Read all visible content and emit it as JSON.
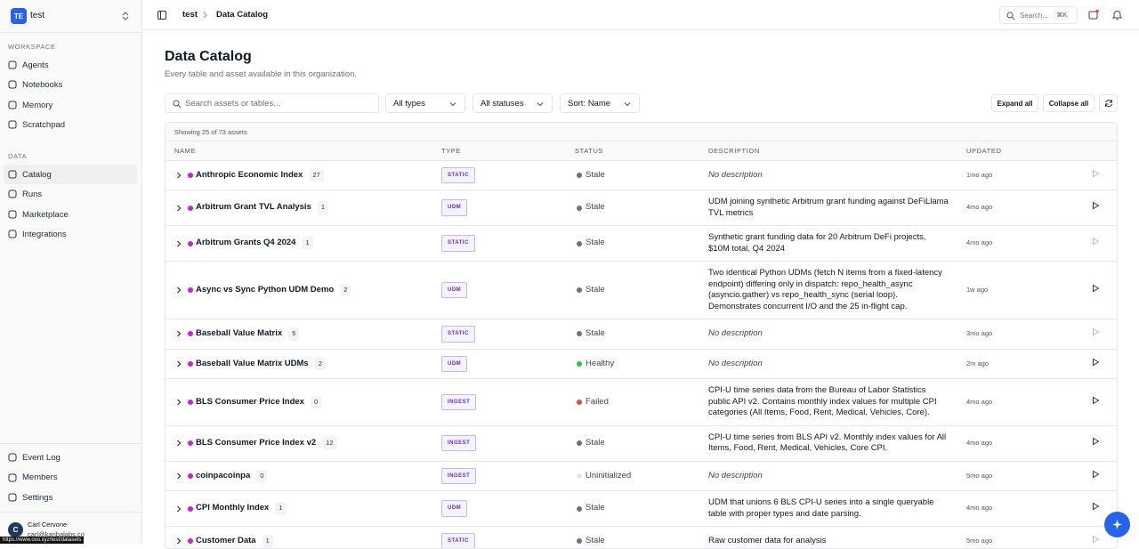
{
  "sidebar": {
    "workspace": {
      "initials": "TE",
      "name": "test"
    },
    "sections": [
      {
        "title": "WORKSPACE",
        "items": [
          "Agents",
          "Notebooks",
          "Memory",
          "Scratchpad"
        ]
      },
      {
        "title": "DATA",
        "items": [
          "Catalog",
          "Runs",
          "Marketplace",
          "Integrations"
        ]
      }
    ],
    "footer_items": [
      "Event Log",
      "Members",
      "Settings"
    ],
    "user": {
      "initial": "C",
      "name": "Carl Cervone",
      "email": "carl@karibalabs.co"
    },
    "status_url": "https://www.oso.xyz/test/datasets"
  },
  "topbar": {
    "breadcrumb": [
      "test",
      "Data Catalog"
    ],
    "search": "Search...",
    "shortcut": "⌘K"
  },
  "header": {
    "title": "Data Catalog",
    "subtitle": "Every table and asset available in this organization."
  },
  "toolbar": {
    "search_placeholder": "Search assets or tables...",
    "filters": [
      "All types",
      "All statuses",
      "Sort: Name"
    ],
    "buttons": [
      "Expand all",
      "Collapse all"
    ]
  },
  "table": {
    "summary": "Showing 25 of 73 assets",
    "columns": [
      "NAME",
      "TYPE",
      "STATUS",
      "DESCRIPTION",
      "UPDATED"
    ],
    "rows": [
      {
        "name": "Anthropic Economic Index",
        "count": "27",
        "type": "STATIC",
        "status": "Stale",
        "status_color": "#6b7280",
        "description": "No description",
        "described": false,
        "updated": "1mo ago",
        "runnable": false
      },
      {
        "name": "Arbitrum Grant TVL Analysis",
        "count": "1",
        "type": "UDM",
        "status": "Stale",
        "status_color": "#6b7280",
        "description": "UDM joining synthetic Arbitrum grant funding against DeFiLlama TVL metrics",
        "described": true,
        "updated": "4mo ago",
        "runnable": true
      },
      {
        "name": "Arbitrum Grants Q4 2024",
        "count": "1",
        "type": "STATIC",
        "status": "Stale",
        "status_color": "#6b7280",
        "description": "Synthetic grant funding data for 20 Arbitrum DeFi projects, $10M total, Q4 2024",
        "described": true,
        "updated": "4mo ago",
        "runnable": false
      },
      {
        "name": "Async vs Sync Python UDM Demo",
        "count": "2",
        "type": "UDM",
        "status": "Stale",
        "status_color": "#6b7280",
        "description": "Two identical Python UDMs (fetch N items from a fixed-latency endpoint) differing only in dispatch: repo_health_async (asyncio.gather) vs repo_health_sync (serial loop). Demonstrates concurrent I/O and the 25 in-flight cap.",
        "described": true,
        "updated": "1w ago",
        "runnable": true
      },
      {
        "name": "Baseball Value Matrix",
        "count": "5",
        "type": "STATIC",
        "status": "Stale",
        "status_color": "#6b7280",
        "description": "No description",
        "described": false,
        "updated": "3mo ago",
        "runnable": false
      },
      {
        "name": "Baseball Value Matrix UDMs",
        "count": "2",
        "type": "UDM",
        "status": "Healthy",
        "status_color": "#22c55e",
        "description": "No description",
        "described": false,
        "updated": "2m ago",
        "runnable": true
      },
      {
        "name": "BLS Consumer Price Index",
        "count": "0",
        "type": "INGEST",
        "status": "Failed",
        "status_color": "#ef4444",
        "description": "CPI-U time series data from the Bureau of Labor Statistics public API v2. Contains monthly index values for multiple CPI categories (All Items, Food, Rent, Medical, Vehicles, Core).",
        "described": true,
        "updated": "4mo ago",
        "runnable": true
      },
      {
        "name": "BLS Consumer Price Index v2",
        "count": "12",
        "type": "INGEST",
        "status": "Stale",
        "status_color": "#6b7280",
        "description": "CPI-U time series from BLS API v2. Monthly index values for All Items, Food, Rent, Medical, Vehicles, Core CPI.",
        "described": true,
        "updated": "4mo ago",
        "runnable": true
      },
      {
        "name": "coinpacoinpa",
        "count": "0",
        "type": "INGEST",
        "status": "Uninitialized",
        "status_color": "#e5e7eb",
        "description": "No description",
        "described": false,
        "updated": "5mo ago",
        "runnable": true
      },
      {
        "name": "CPI Monthly Index",
        "count": "1",
        "type": "UDM",
        "status": "Stale",
        "status_color": "#6b7280",
        "description": "UDM that unions 6 BLS CPI-U series into a single queryable table with proper types and date parsing.",
        "described": true,
        "updated": "4mo ago",
        "runnable": true
      },
      {
        "name": "Customer Data",
        "count": "1",
        "type": "STATIC",
        "status": "Stale",
        "status_color": "#6b7280",
        "description": "Raw customer data for analysis",
        "described": true,
        "updated": "5mo ago",
        "runnable": false
      }
    ]
  }
}
